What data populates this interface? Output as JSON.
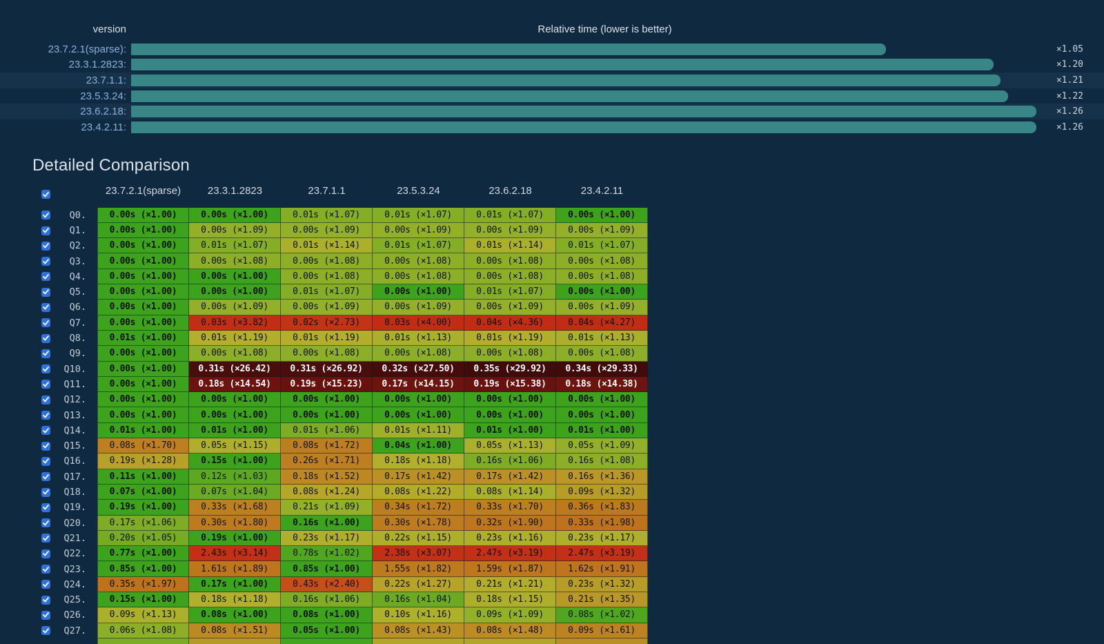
{
  "chart": {
    "left_header": "version",
    "right_header": "Relative time (lower is better)",
    "bar_color": "#388786",
    "striped_rows": [
      2,
      4
    ]
  },
  "section_title": "Detailed Comparison",
  "table": {
    "clipped_row_colors": [
      "#7cab26",
      "#b59a28",
      "#44a41f",
      "#b3a52a",
      "#b3a52a",
      "#b78f25"
    ]
  },
  "chart_data": [
    {
      "type": "bar",
      "orientation": "horizontal",
      "title": "Relative time (lower is better)",
      "xlabel": "version",
      "categories": [
        "23.7.2.1(sparse):",
        "23.3.1.2823:",
        "23.7.1.1:",
        "23.5.3.24:",
        "23.6.2.18:",
        "23.4.2.11:"
      ],
      "values": [
        1.05,
        1.2,
        1.21,
        1.22,
        1.26,
        1.26
      ],
      "value_labels": [
        "×1.05",
        "×1.20",
        "×1.21",
        "×1.22",
        "×1.26",
        "×1.26"
      ],
      "xlim": [
        0,
        1.27
      ]
    },
    {
      "type": "heatmap",
      "title": "Detailed Comparison",
      "columns": [
        "23.7.2.1(sparse)",
        "23.3.1.2823",
        "23.7.1.1",
        "23.5.3.24",
        "23.6.2.18",
        "23.4.2.11"
      ],
      "row_labels": [
        "Q0.",
        "Q1.",
        "Q2.",
        "Q3.",
        "Q4.",
        "Q5.",
        "Q6.",
        "Q7.",
        "Q8.",
        "Q9.",
        "Q10.",
        "Q11.",
        "Q12.",
        "Q13.",
        "Q14.",
        "Q15.",
        "Q16.",
        "Q17.",
        "Q18.",
        "Q19.",
        "Q20.",
        "Q21.",
        "Q22.",
        "Q23.",
        "Q24.",
        "Q25.",
        "Q26.",
        "Q27."
      ],
      "row_checked": [
        true,
        true,
        true,
        true,
        true,
        true,
        true,
        true,
        true,
        true,
        true,
        true,
        true,
        true,
        true,
        true,
        true,
        true,
        true,
        true,
        true,
        true,
        true,
        true,
        true,
        true,
        true,
        true
      ],
      "times_s": [
        [
          0.0,
          0.0,
          0.01,
          0.01,
          0.01,
          0.0
        ],
        [
          0.0,
          0.0,
          0.0,
          0.0,
          0.0,
          0.0
        ],
        [
          0.0,
          0.01,
          0.01,
          0.01,
          0.01,
          0.01
        ],
        [
          0.0,
          0.0,
          0.0,
          0.0,
          0.0,
          0.0
        ],
        [
          0.0,
          0.0,
          0.0,
          0.0,
          0.0,
          0.0
        ],
        [
          0.0,
          0.0,
          0.01,
          0.0,
          0.01,
          0.0
        ],
        [
          0.0,
          0.0,
          0.0,
          0.0,
          0.0,
          0.0
        ],
        [
          0.0,
          0.03,
          0.02,
          0.03,
          0.04,
          0.04
        ],
        [
          0.01,
          0.01,
          0.01,
          0.01,
          0.01,
          0.01
        ],
        [
          0.0,
          0.0,
          0.0,
          0.0,
          0.0,
          0.0
        ],
        [
          0.0,
          0.31,
          0.31,
          0.32,
          0.35,
          0.34
        ],
        [
          0.0,
          0.18,
          0.19,
          0.17,
          0.19,
          0.18
        ],
        [
          0.0,
          0.0,
          0.0,
          0.0,
          0.0,
          0.0
        ],
        [
          0.0,
          0.0,
          0.0,
          0.0,
          0.0,
          0.0
        ],
        [
          0.01,
          0.01,
          0.01,
          0.01,
          0.01,
          0.01
        ],
        [
          0.08,
          0.05,
          0.08,
          0.04,
          0.05,
          0.05
        ],
        [
          0.19,
          0.15,
          0.26,
          0.18,
          0.16,
          0.16
        ],
        [
          0.11,
          0.12,
          0.18,
          0.17,
          0.17,
          0.16
        ],
        [
          0.07,
          0.07,
          0.08,
          0.08,
          0.08,
          0.09
        ],
        [
          0.19,
          0.33,
          0.21,
          0.34,
          0.33,
          0.36
        ],
        [
          0.17,
          0.3,
          0.16,
          0.3,
          0.32,
          0.33
        ],
        [
          0.2,
          0.19,
          0.23,
          0.22,
          0.23,
          0.23
        ],
        [
          0.77,
          2.43,
          0.78,
          2.38,
          2.47,
          2.47
        ],
        [
          0.85,
          1.61,
          0.85,
          1.55,
          1.59,
          1.62
        ],
        [
          0.35,
          0.17,
          0.43,
          0.22,
          0.21,
          0.23
        ],
        [
          0.15,
          0.18,
          0.16,
          0.16,
          0.18,
          0.21
        ],
        [
          0.09,
          0.08,
          0.08,
          0.1,
          0.09,
          0.08
        ],
        [
          0.06,
          0.08,
          0.05,
          0.08,
          0.08,
          0.09
        ]
      ],
      "ratios": [
        [
          1.0,
          1.0,
          1.07,
          1.07,
          1.07,
          1.0
        ],
        [
          1.0,
          1.09,
          1.09,
          1.09,
          1.09,
          1.09
        ],
        [
          1.0,
          1.07,
          1.14,
          1.07,
          1.14,
          1.07
        ],
        [
          1.0,
          1.08,
          1.08,
          1.08,
          1.08,
          1.08
        ],
        [
          1.0,
          1.0,
          1.08,
          1.08,
          1.08,
          1.08
        ],
        [
          1.0,
          1.0,
          1.07,
          1.0,
          1.07,
          1.0
        ],
        [
          1.0,
          1.09,
          1.09,
          1.09,
          1.09,
          1.09
        ],
        [
          1.0,
          3.82,
          2.73,
          4.0,
          4.36,
          4.27
        ],
        [
          1.0,
          1.19,
          1.19,
          1.13,
          1.19,
          1.13
        ],
        [
          1.0,
          1.08,
          1.08,
          1.08,
          1.08,
          1.08
        ],
        [
          1.0,
          26.42,
          26.92,
          27.5,
          29.92,
          29.33
        ],
        [
          1.0,
          14.54,
          15.23,
          14.15,
          15.38,
          14.38
        ],
        [
          1.0,
          1.0,
          1.0,
          1.0,
          1.0,
          1.0
        ],
        [
          1.0,
          1.0,
          1.0,
          1.0,
          1.0,
          1.0
        ],
        [
          1.0,
          1.0,
          1.06,
          1.11,
          1.0,
          1.0
        ],
        [
          1.7,
          1.15,
          1.72,
          1.0,
          1.13,
          1.09
        ],
        [
          1.28,
          1.0,
          1.71,
          1.18,
          1.06,
          1.08
        ],
        [
          1.0,
          1.03,
          1.52,
          1.42,
          1.42,
          1.36
        ],
        [
          1.0,
          1.04,
          1.24,
          1.22,
          1.14,
          1.32
        ],
        [
          1.0,
          1.68,
          1.09,
          1.72,
          1.7,
          1.83
        ],
        [
          1.06,
          1.8,
          1.0,
          1.78,
          1.9,
          1.98
        ],
        [
          1.05,
          1.0,
          1.17,
          1.15,
          1.16,
          1.17
        ],
        [
          1.0,
          3.14,
          1.02,
          3.07,
          3.19,
          3.19
        ],
        [
          1.0,
          1.89,
          1.0,
          1.82,
          1.87,
          1.91
        ],
        [
          1.97,
          1.0,
          2.4,
          1.27,
          1.21,
          1.32
        ],
        [
          1.0,
          1.18,
          1.06,
          1.04,
          1.15,
          1.35
        ],
        [
          1.13,
          1.0,
          1.0,
          1.16,
          1.09,
          1.02
        ],
        [
          1.08,
          1.51,
          1.0,
          1.43,
          1.48,
          1.61
        ]
      ]
    }
  ]
}
